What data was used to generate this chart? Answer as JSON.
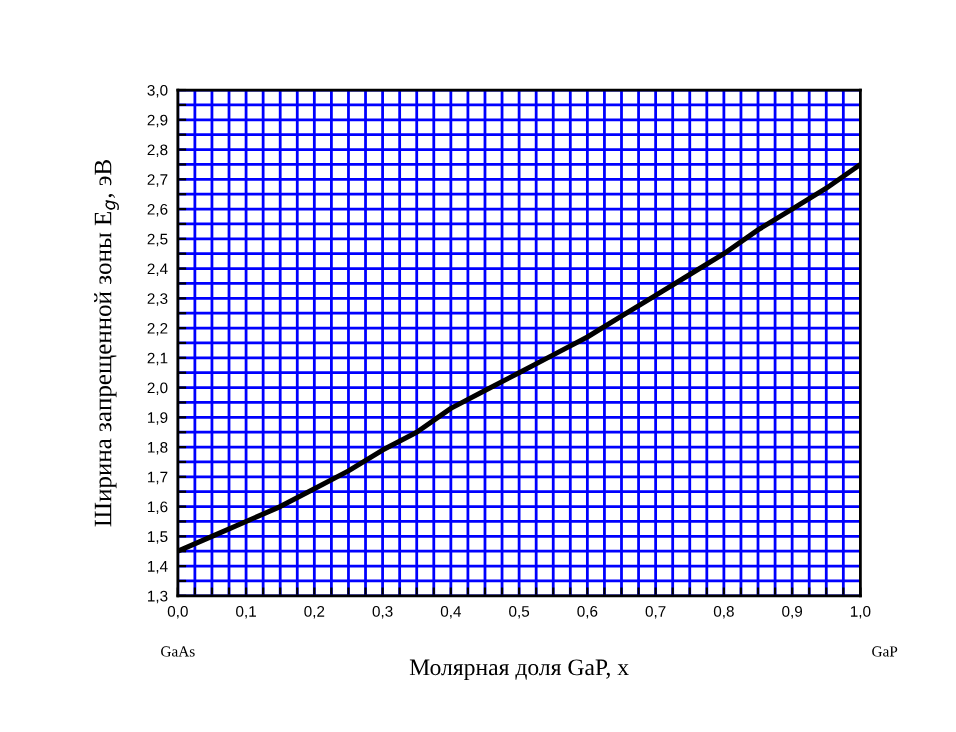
{
  "chart_data": {
    "type": "line",
    "xlabel": "Молярная доля GaP, x",
    "ylabel": "Ширина запрещенной зоны E$_{g}$, эВ",
    "annotations": [
      "GaAs",
      "GaP"
    ],
    "x": [
      0,
      0.05,
      0.1,
      0.15,
      0.2,
      0.25,
      0.3,
      0.35,
      0.4,
      0.45,
      0.5,
      0.55,
      0.6,
      0.65,
      0.7,
      0.75,
      0.8,
      0.85,
      0.9,
      0.95,
      1.0
    ],
    "series": [
      {
        "color": "#000000",
        "values": [
          1.45,
          1.5,
          1.55,
          1.6,
          1.66,
          1.72,
          1.79,
          1.85,
          1.93,
          1.99,
          2.05,
          2.11,
          2.17,
          2.24,
          2.31,
          2.38,
          2.45,
          2.53,
          2.6,
          2.67,
          2.75
        ]
      }
    ],
    "xlim": [
      0,
      1
    ],
    "ylim": [
      1.3,
      3.0
    ],
    "xticks": [
      {
        "value": 0,
        "label": "0,0"
      },
      {
        "value": 0.025,
        "label": null
      },
      {
        "value": 0.05,
        "label": null
      },
      {
        "value": 0.075,
        "label": null
      },
      {
        "value": 0.1,
        "label": "0,1"
      },
      {
        "value": 0.125,
        "label": null
      },
      {
        "value": 0.15,
        "label": null
      },
      {
        "value": 0.175,
        "label": null
      },
      {
        "value": 0.2,
        "label": "0,2"
      },
      {
        "value": 0.225,
        "label": null
      },
      {
        "value": 0.25,
        "label": null
      },
      {
        "value": 0.275,
        "label": null
      },
      {
        "value": 0.3,
        "label": "0,3"
      },
      {
        "value": 0.325,
        "label": null
      },
      {
        "value": 0.35,
        "label": null
      },
      {
        "value": 0.375,
        "label": null
      },
      {
        "value": 0.4,
        "label": "0,4"
      },
      {
        "value": 0.425,
        "label": null
      },
      {
        "value": 0.45,
        "label": null
      },
      {
        "value": 0.475,
        "label": null
      },
      {
        "value": 0.5,
        "label": "0,5"
      },
      {
        "value": 0.525,
        "label": null
      },
      {
        "value": 0.55,
        "label": null
      },
      {
        "value": 0.575,
        "label": null
      },
      {
        "value": 0.6,
        "label": "0,6"
      },
      {
        "value": 0.625,
        "label": null
      },
      {
        "value": 0.65,
        "label": null
      },
      {
        "value": 0.675,
        "label": null
      },
      {
        "value": 0.7,
        "label": "0,7"
      },
      {
        "value": 0.725,
        "label": null
      },
      {
        "value": 0.75,
        "label": null
      },
      {
        "value": 0.775,
        "label": null
      },
      {
        "value": 0.8,
        "label": "0,8"
      },
      {
        "value": 0.825,
        "label": null
      },
      {
        "value": 0.85,
        "label": null
      },
      {
        "value": 0.875,
        "label": null
      },
      {
        "value": 0.9,
        "label": "0,9"
      },
      {
        "value": 0.925,
        "label": null
      },
      {
        "value": 0.95,
        "label": null
      },
      {
        "value": 0.975,
        "label": null
      },
      {
        "value": 1.0,
        "label": "1,0"
      }
    ],
    "yticks": [
      {
        "value": 1.3,
        "label": "1,3"
      },
      {
        "value": 1.35,
        "label": null
      },
      {
        "value": 1.4,
        "label": "1,4"
      },
      {
        "value": 1.45,
        "label": null
      },
      {
        "value": 1.5,
        "label": "1,5"
      },
      {
        "value": 1.55,
        "label": null
      },
      {
        "value": 1.6,
        "label": "1,6"
      },
      {
        "value": 1.65,
        "label": null
      },
      {
        "value": 1.7,
        "label": "1,7"
      },
      {
        "value": 1.75,
        "label": null
      },
      {
        "value": 1.8,
        "label": "1,8"
      },
      {
        "value": 1.85,
        "label": null
      },
      {
        "value": 1.9,
        "label": "1,9"
      },
      {
        "value": 1.95,
        "label": null
      },
      {
        "value": 2.0,
        "label": "2,0"
      },
      {
        "value": 2.05,
        "label": null
      },
      {
        "value": 2.1,
        "label": "2,1"
      },
      {
        "value": 2.15,
        "label": null
      },
      {
        "value": 2.2,
        "label": "2,2"
      },
      {
        "value": 2.25,
        "label": null
      },
      {
        "value": 2.3,
        "label": "2,3"
      },
      {
        "value": 2.35,
        "label": null
      },
      {
        "value": 2.4,
        "label": "2,4"
      },
      {
        "value": 2.45,
        "label": null
      },
      {
        "value": 2.5,
        "label": "2,5"
      },
      {
        "value": 2.55,
        "label": null
      },
      {
        "value": 2.6,
        "label": "2,6"
      },
      {
        "value": 2.65,
        "label": null
      },
      {
        "value": 2.7,
        "label": "2,7"
      },
      {
        "value": 2.75,
        "label": null
      },
      {
        "value": 2.8,
        "label": "2,8"
      },
      {
        "value": 2.85,
        "label": null
      },
      {
        "value": 2.9,
        "label": "2,9"
      },
      {
        "value": 2.95,
        "label": null
      },
      {
        "value": 3.0,
        "label": "3,0"
      }
    ],
    "grid": true,
    "marker": "none",
    "line_style": "solid"
  }
}
